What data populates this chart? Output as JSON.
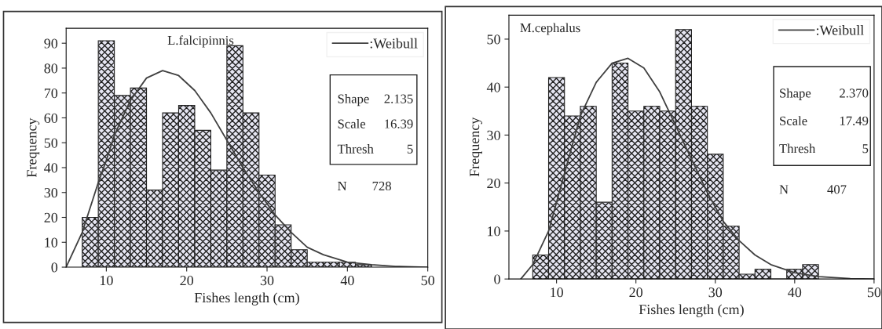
{
  "chart_data": [
    {
      "type": "histogram",
      "xlabel": "Fishes length (cm)",
      "ylabel": "Frequency",
      "color": "#222222",
      "bins": [
        7,
        9,
        11,
        13,
        15,
        17,
        19,
        21,
        23,
        25,
        27,
        29,
        31,
        33,
        35,
        37,
        39,
        41,
        43
      ],
      "values": [
        20,
        91,
        69,
        72,
        31,
        62,
        65,
        55,
        39,
        89,
        62,
        37,
        17,
        7,
        2,
        2,
        2,
        1
      ],
      "series": [
        {
          "type": "line",
          "name": ":Weibull",
          "color": "#404040",
          "x": [
            5,
            7,
            9,
            10,
            11,
            13,
            15,
            17,
            19,
            21,
            23,
            25,
            27,
            29,
            31,
            33,
            35,
            37,
            40,
            43,
            46,
            50
          ],
          "values": [
            0,
            14,
            34,
            43,
            53,
            67,
            76,
            79,
            77,
            71,
            62,
            51,
            40,
            30,
            21,
            14,
            8,
            5,
            2,
            1,
            0.3,
            0
          ]
        }
      ],
      "xlim": [
        5,
        50
      ],
      "ylim": [
        0,
        96
      ],
      "xticks": [
        10,
        20,
        30,
        40,
        50
      ],
      "yticks": [
        0,
        10,
        20,
        30,
        40,
        50,
        60,
        70,
        80,
        90
      ],
      "legend": "top right",
      "annotations": [
        "L.falcipinnis",
        "Shape 2.135",
        "Scale 16.39",
        "Thresh 5",
        "N 728"
      ]
    },
    {
      "type": "histogram",
      "xlabel": "Fishes length (cm)",
      "ylabel": "Frequency",
      "color": "#222222",
      "bins": [
        7,
        9,
        11,
        13,
        15,
        17,
        19,
        21,
        23,
        25,
        27,
        29,
        31,
        33,
        35,
        37,
        39,
        41,
        43
      ],
      "values": [
        5,
        42,
        34,
        36,
        16,
        45,
        35,
        36,
        35,
        52,
        36,
        26,
        11,
        1,
        2,
        0,
        2,
        3
      ],
      "series": [
        {
          "type": "line",
          "name": ":Weibull",
          "color": "#404040",
          "x": [
            5.5,
            7,
            9,
            10,
            11,
            13,
            15,
            17,
            19,
            21,
            23,
            25,
            27,
            29,
            31,
            33,
            35,
            37,
            40,
            43,
            47,
            50
          ],
          "values": [
            0,
            3,
            10,
            16,
            22,
            34,
            41,
            45,
            46,
            44,
            39,
            32,
            25,
            18,
            12,
            8,
            5,
            3,
            1.3,
            0.5,
            0.1,
            0
          ]
        }
      ],
      "xlim": [
        4,
        50
      ],
      "ylim": [
        0,
        55
      ],
      "xticks": [
        10,
        20,
        30,
        40,
        50
      ],
      "yticks": [
        0,
        10,
        20,
        30,
        40,
        50
      ],
      "legend": "top right",
      "annotations": [
        "M.cephalus",
        "Shape 2.370",
        "Scale 17.49",
        "Thresh 5",
        "N 407"
      ]
    }
  ]
}
